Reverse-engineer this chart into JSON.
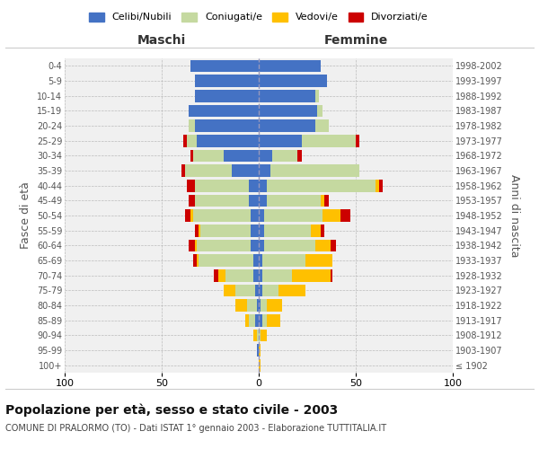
{
  "age_groups": [
    "100+",
    "95-99",
    "90-94",
    "85-89",
    "80-84",
    "75-79",
    "70-74",
    "65-69",
    "60-64",
    "55-59",
    "50-54",
    "45-49",
    "40-44",
    "35-39",
    "30-34",
    "25-29",
    "20-24",
    "15-19",
    "10-14",
    "5-9",
    "0-4"
  ],
  "birth_years": [
    "≤ 1902",
    "1903-1907",
    "1908-1912",
    "1913-1917",
    "1918-1922",
    "1923-1927",
    "1928-1932",
    "1933-1937",
    "1938-1942",
    "1943-1947",
    "1948-1952",
    "1953-1957",
    "1958-1962",
    "1963-1967",
    "1968-1972",
    "1973-1977",
    "1978-1982",
    "1983-1987",
    "1988-1992",
    "1993-1997",
    "1998-2002"
  ],
  "maschi": {
    "celibi": [
      0,
      1,
      0,
      2,
      1,
      2,
      3,
      3,
      4,
      4,
      4,
      5,
      5,
      14,
      18,
      32,
      33,
      36,
      33,
      33,
      35
    ],
    "coniugati": [
      0,
      0,
      1,
      3,
      5,
      10,
      14,
      28,
      28,
      26,
      30,
      28,
      28,
      24,
      16,
      5,
      3,
      0,
      0,
      0,
      0
    ],
    "vedovi": [
      0,
      0,
      2,
      2,
      6,
      6,
      4,
      1,
      1,
      1,
      1,
      0,
      0,
      0,
      0,
      0,
      0,
      0,
      0,
      0,
      0
    ],
    "divorziati": [
      0,
      0,
      0,
      0,
      0,
      0,
      2,
      2,
      3,
      2,
      3,
      3,
      4,
      2,
      1,
      2,
      0,
      0,
      0,
      0,
      0
    ]
  },
  "femmine": {
    "nubili": [
      0,
      0,
      0,
      2,
      1,
      2,
      2,
      2,
      3,
      3,
      3,
      4,
      4,
      6,
      7,
      22,
      29,
      30,
      29,
      35,
      32
    ],
    "coniugate": [
      0,
      0,
      1,
      2,
      3,
      8,
      15,
      22,
      26,
      24,
      30,
      28,
      56,
      46,
      13,
      28,
      7,
      3,
      2,
      0,
      0
    ],
    "vedove": [
      1,
      1,
      3,
      7,
      8,
      14,
      20,
      14,
      8,
      5,
      9,
      2,
      2,
      0,
      0,
      0,
      0,
      0,
      0,
      0,
      0
    ],
    "divorziate": [
      0,
      0,
      0,
      0,
      0,
      0,
      1,
      0,
      3,
      2,
      5,
      2,
      2,
      0,
      2,
      2,
      0,
      0,
      0,
      0,
      0
    ]
  },
  "colors": {
    "celibi_nubili": "#4472c4",
    "coniugati": "#c5d9a0",
    "vedovi": "#ffc000",
    "divorziati": "#cc0000"
  },
  "xlim": 100,
  "title": "Popolazione per età, sesso e stato civile - 2003",
  "subtitle": "COMUNE DI PRALORMO (TO) - Dati ISTAT 1° gennaio 2003 - Elaborazione TUTTITALIA.IT",
  "ylabel": "Fasce di età",
  "ylabel_right": "Anni di nascita",
  "legend_labels": [
    "Celibi/Nubili",
    "Coniugati/e",
    "Vedovi/e",
    "Divorziati/e"
  ],
  "background_color": "#f0f0f0",
  "plot_bg": "#ffffff",
  "border_color": "#cccccc"
}
